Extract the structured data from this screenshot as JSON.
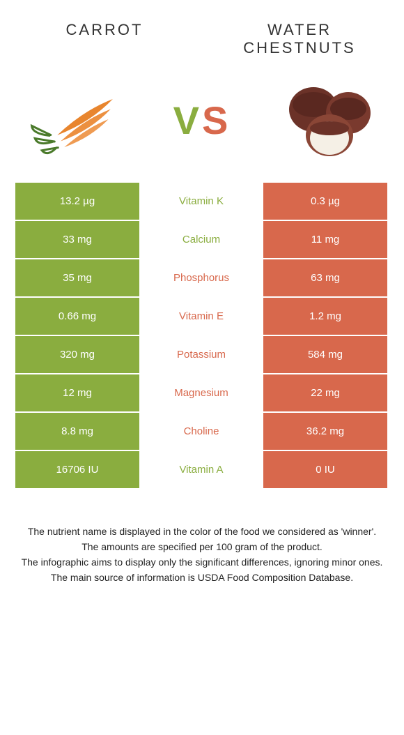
{
  "header": {
    "left_title": "Carrot",
    "right_title": "Water chestnuts",
    "vs_v": "V",
    "vs_s": "S"
  },
  "colors": {
    "carrot": "#8aad3f",
    "chestnut": "#d8684c",
    "carrot_text": "#8aad3f",
    "chestnut_text": "#d8684c"
  },
  "rows": [
    {
      "left": "13.2 µg",
      "mid": "Vitamin K",
      "right": "0.3 µg",
      "winner": "carrot"
    },
    {
      "left": "33 mg",
      "mid": "Calcium",
      "right": "11 mg",
      "winner": "carrot"
    },
    {
      "left": "35 mg",
      "mid": "Phosphorus",
      "right": "63 mg",
      "winner": "chestnut"
    },
    {
      "left": "0.66 mg",
      "mid": "Vitamin E",
      "right": "1.2 mg",
      "winner": "chestnut"
    },
    {
      "left": "320 mg",
      "mid": "Potassium",
      "right": "584 mg",
      "winner": "chestnut"
    },
    {
      "left": "12 mg",
      "mid": "Magnesium",
      "right": "22 mg",
      "winner": "chestnut"
    },
    {
      "left": "8.8 mg",
      "mid": "Choline",
      "right": "36.2 mg",
      "winner": "chestnut"
    },
    {
      "left": "16706 IU",
      "mid": "Vitamin A",
      "right": "0 IU",
      "winner": "carrot"
    }
  ],
  "footer": {
    "l1": "The nutrient name is displayed in the color of the food we considered as 'winner'.",
    "l2": "The amounts are specified per 100 gram of the product.",
    "l3": "The infographic aims to display only the significant differences, ignoring minor ones.",
    "l4": "The main source of information is USDA Food Composition Database."
  }
}
